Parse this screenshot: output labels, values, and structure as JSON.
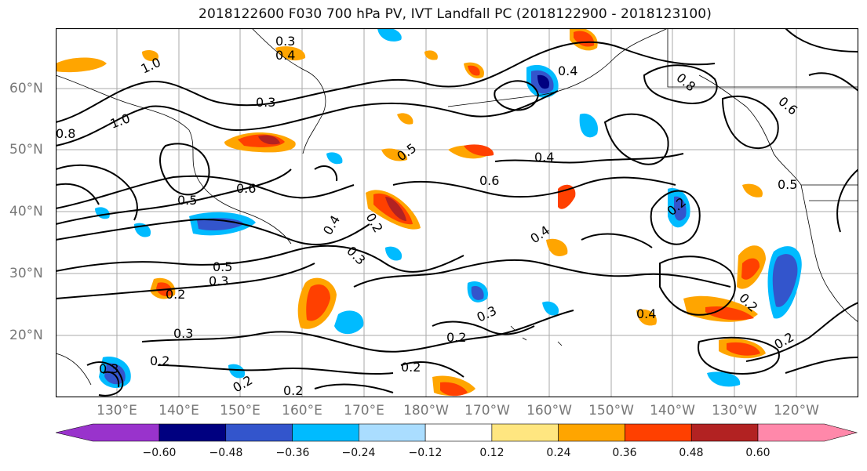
{
  "title": "2018122600 F030 700 hPa PV, IVT Landfall PC (2018122900 - 2018123100)",
  "lat_labels": [
    "60°N",
    "50°N",
    "40°N",
    "30°N",
    "20°N"
  ],
  "lon_labels": [
    "130°E",
    "140°E",
    "150°E",
    "160°E",
    "170°E",
    "180°W",
    "170°W",
    "160°W",
    "150°W",
    "140°W",
    "130°W",
    "120°W"
  ],
  "colorbar": {
    "ticks": [
      "−0.60",
      "−0.48",
      "−0.36",
      "−0.24",
      "−0.12",
      "0.12",
      "0.24",
      "0.36",
      "0.48",
      "0.60"
    ],
    "colors": [
      "#9933cc",
      "#000080",
      "#3355cc",
      "#00bbff",
      "#aaddff",
      "#ffffff",
      "#ffe680",
      "#ffa500",
      "#ff4000",
      "#b22222",
      "#ff88aa"
    ]
  },
  "contour_labels": [
    "1.0",
    "0.8",
    "0.6",
    "0.5",
    "0.4",
    "0.3",
    "0.2"
  ],
  "colors": {
    "coast": "#000000",
    "grid": "#aaaaaa",
    "contour": "#000000"
  }
}
